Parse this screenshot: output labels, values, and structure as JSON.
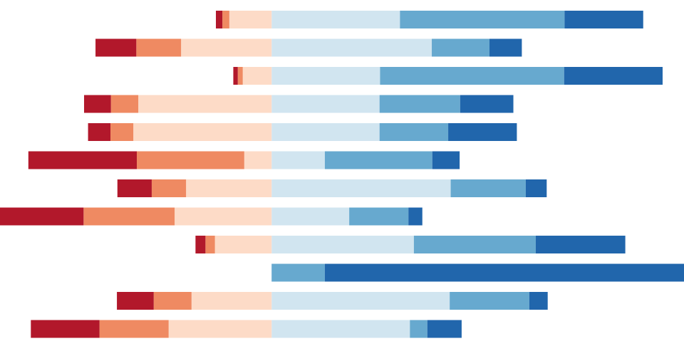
{
  "chart_data": {
    "type": "bar",
    "orientation": "horizontal",
    "stacked": "diverging",
    "title": "",
    "xlabel": "",
    "ylabel": "",
    "grid": false,
    "legend": "none",
    "x_range": [
      -5.46,
      8.29
    ],
    "rows": 12,
    "series": [
      {
        "color": "#b2182b",
        "side": "negative",
        "values": [
          0.13,
          0.82,
          0.09,
          0.54,
          0.45,
          2.18,
          0.69,
          1.83,
          0.2,
          0.0,
          0.74,
          1.38
        ]
      },
      {
        "color": "#ef8a62",
        "side": "negative",
        "values": [
          0.14,
          0.9,
          0.1,
          0.55,
          0.46,
          2.16,
          0.69,
          1.83,
          0.19,
          0.0,
          0.76,
          1.39
        ]
      },
      {
        "color": "#fddbc7",
        "side": "negative",
        "values": [
          0.85,
          1.82,
          0.58,
          2.68,
          2.78,
          0.55,
          1.72,
          1.95,
          1.14,
          0.0,
          1.61,
          2.07
        ]
      },
      {
        "color": "#d1e5f0",
        "side": "positive",
        "values": [
          2.58,
          3.22,
          2.18,
          2.17,
          2.17,
          1.07,
          3.6,
          1.56,
          2.86,
          0.0,
          3.58,
          2.78
        ]
      },
      {
        "color": "#67a9cf",
        "side": "positive",
        "values": [
          3.31,
          1.16,
          3.7,
          1.62,
          1.38,
          2.16,
          1.51,
          1.19,
          2.45,
          1.07,
          1.6,
          0.35
        ]
      },
      {
        "color": "#2166ac",
        "side": "positive",
        "values": [
          1.58,
          0.65,
          1.98,
          1.07,
          1.38,
          0.55,
          0.42,
          0.28,
          1.8,
          7.55,
          0.37,
          0.69
        ]
      }
    ]
  }
}
